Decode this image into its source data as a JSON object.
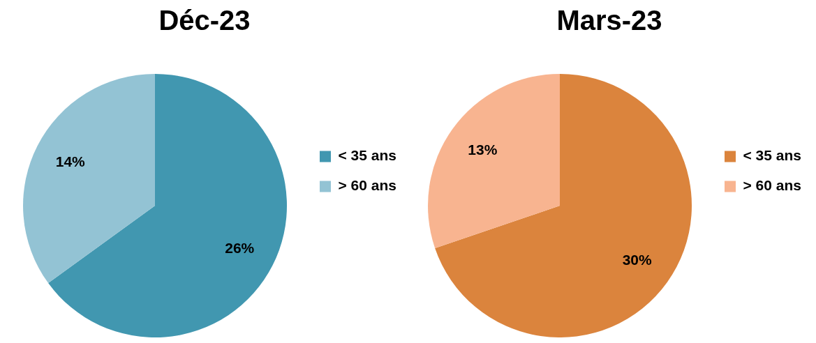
{
  "chart_data": [
    {
      "type": "pie",
      "title": "Déc-23",
      "categories": [
        "< 35 ans",
        "> 60 ans"
      ],
      "values": [
        26,
        14
      ],
      "colors": [
        "#4197b0",
        "#93c3d4"
      ],
      "value_labels": [
        "26%",
        "14%"
      ],
      "legend": "right"
    },
    {
      "type": "pie",
      "title": "Mars-23",
      "categories": [
        "< 35 ans",
        "> 60 ans"
      ],
      "values": [
        30,
        13
      ],
      "colors": [
        "#db843d",
        "#f8b490"
      ],
      "value_labels": [
        "30%",
        "13%"
      ],
      "legend": "right"
    }
  ]
}
